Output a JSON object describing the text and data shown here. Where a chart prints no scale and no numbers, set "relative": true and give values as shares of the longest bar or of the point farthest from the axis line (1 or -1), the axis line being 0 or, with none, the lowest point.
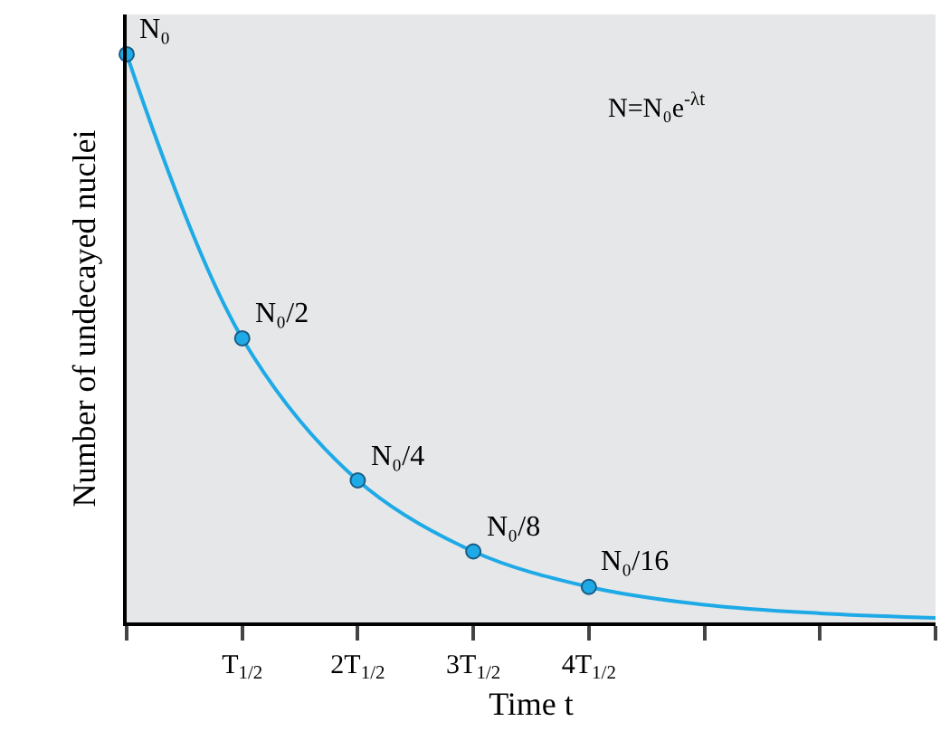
{
  "chart_data": {
    "type": "line",
    "relative": true,
    "xlabel": "Time t",
    "ylabel": "Number of undecayed nuclei",
    "categories": [
      null,
      "T$_{1/2}$",
      "2T$_{1/2}$",
      "3T$_{1/2}$",
      "4T$_{1/2}$",
      null,
      null,
      null
    ],
    "series": [
      {
        "marker": "none",
        "line_style": "solid",
        "color": "#1eaae7",
        "values": [
          1,
          0.5,
          0.25,
          0.125,
          0.0625,
          0.031,
          0.016,
          0.008
        ]
      },
      {
        "type": "scatter",
        "marker": "circle",
        "color": "#1eaae7",
        "values": [
          1,
          0.5,
          0.25,
          0.125,
          0.0625,
          null,
          null,
          null
        ]
      }
    ],
    "annotations": [
      "N=N₀e$^{-λt}$",
      "N₀",
      {
        "text": "N₀/2",
        "x": "T$_{1/2}$",
        "y": 0.5
      },
      {
        "text": "N₀/4",
        "x": "2T$_{1/2}$",
        "y": 0.25
      },
      {
        "text": "N₀/8",
        "x": "3T$_{1/2}$",
        "y": 0.125
      },
      {
        "text": "N₀/16",
        "x": "4T$_{1/2}$",
        "y": 0.0625
      }
    ],
    "grid": false
  }
}
